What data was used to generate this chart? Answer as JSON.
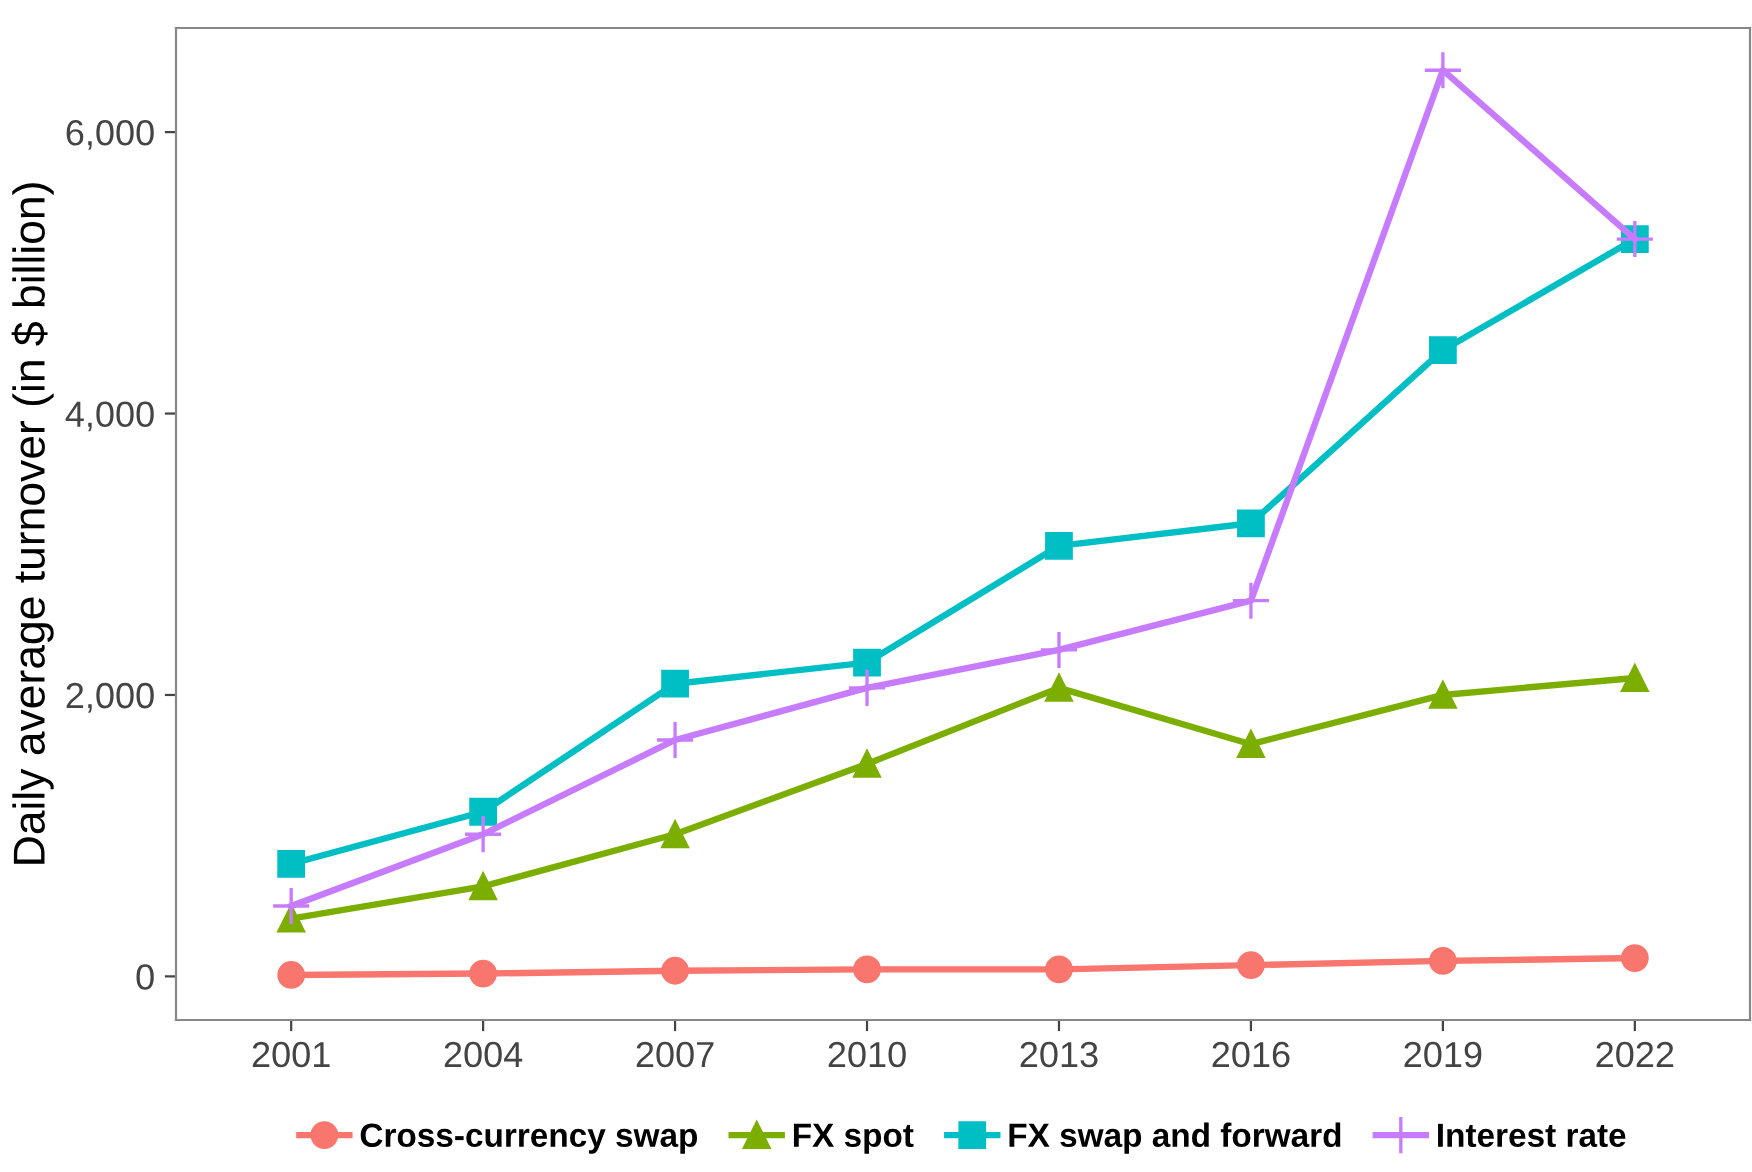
{
  "chart_data": {
    "type": "line",
    "ylabel": "Daily average turnover (in $ billion)",
    "categories": [
      "2001",
      "2004",
      "2007",
      "2010",
      "2013",
      "2016",
      "2019",
      "2022"
    ],
    "series": [
      {
        "name": "Cross-currency swap",
        "color": "#F8766D",
        "marker": "circle",
        "values": [
          10,
          20,
          40,
          50,
          50,
          80,
          110,
          130
        ]
      },
      {
        "name": "FX spot",
        "color": "#7CAE00",
        "marker": "triangle",
        "values": [
          410,
          640,
          1010,
          1510,
          2050,
          1650,
          2000,
          2120
        ]
      },
      {
        "name": "FX swap and forward",
        "color": "#00BFC4",
        "marker": "square",
        "values": [
          800,
          1170,
          2080,
          2230,
          3060,
          3220,
          4450,
          5240
        ]
      },
      {
        "name": "Interest rate",
        "color": "#C77CFF",
        "marker": "cross",
        "values": [
          500,
          1010,
          1680,
          2050,
          2320,
          2670,
          6440,
          5240
        ]
      }
    ],
    "ylim": [
      -310,
      6740
    ],
    "yticks": [
      {
        "value": 0,
        "label": "0"
      },
      {
        "value": 2000,
        "label": "2,000"
      },
      {
        "value": 4000,
        "label": "4,000"
      },
      {
        "value": 6000,
        "label": "6,000"
      }
    ],
    "grid": false,
    "legend": "bottom",
    "line_style": "solid"
  }
}
